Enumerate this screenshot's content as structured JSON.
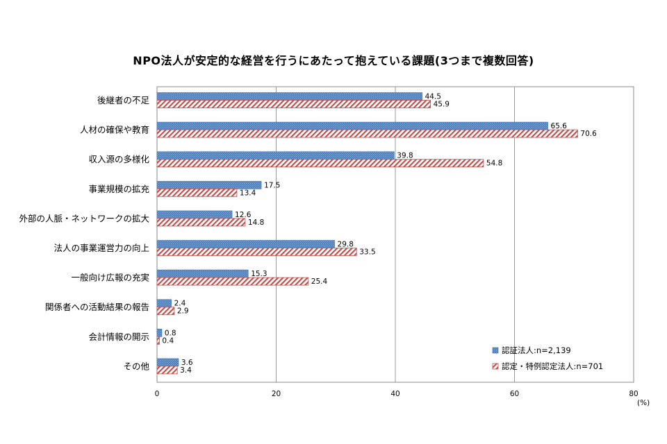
{
  "chart_data": {
    "type": "bar",
    "orientation": "horizontal",
    "title": "NPO法人が安定的な経営を行うにあたって抱えている課題(3つまで複数回答)",
    "categories": [
      "後継者の不足",
      "人材の確保や教育",
      "収入源の多様化",
      "事業規模の拡充",
      "外部の人脈・ネットワークの拡大",
      "法人の事業運営力の向上",
      "一般向け広報の充実",
      "関係者への活動結果の報告",
      "会計情報の開示",
      "その他"
    ],
    "series": [
      {
        "name": "認証法人:n=2,139",
        "color": "#4f81bd",
        "values": [
          44.5,
          65.6,
          39.8,
          17.5,
          12.6,
          29.8,
          15.3,
          2.4,
          0.8,
          3.6
        ]
      },
      {
        "name": "認定・特例認定法人:n=701",
        "color": "#c0504d",
        "values": [
          45.9,
          70.6,
          54.8,
          13.4,
          14.8,
          33.5,
          25.4,
          2.9,
          0.4,
          3.4
        ]
      }
    ],
    "xlim": [
      0,
      80
    ],
    "xticks": [
      0,
      20,
      40,
      60,
      80
    ],
    "xunit": "(%)",
    "grid": true,
    "legend_position": "bottom-right"
  }
}
